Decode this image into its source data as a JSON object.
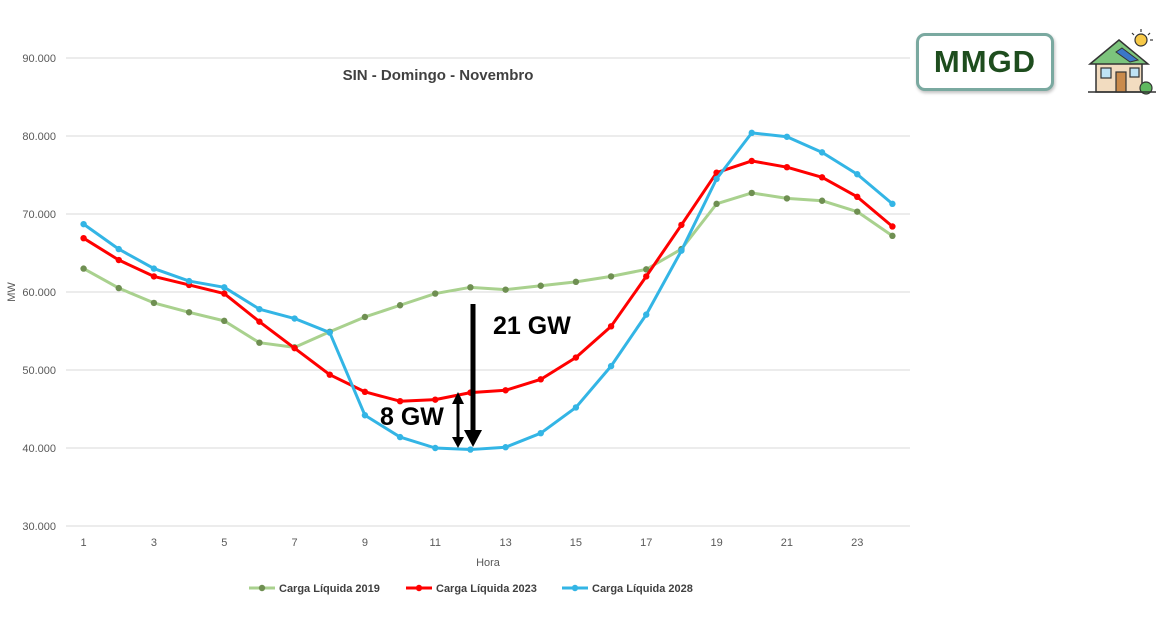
{
  "logo": {
    "text": "MMGD",
    "icon": "solar-house-icon"
  },
  "annotations": {
    "big_label": "21 GW",
    "small_label": "8 GW"
  },
  "chart_data": {
    "type": "line",
    "title": "SIN - Domingo - Novembro",
    "xlabel": "Hora",
    "ylabel": "MW",
    "ylim": [
      30000,
      90000
    ],
    "yticks": [
      {
        "value": 30000,
        "label": "30.000"
      },
      {
        "value": 40000,
        "label": "40.000"
      },
      {
        "value": 50000,
        "label": "50.000"
      },
      {
        "value": 60000,
        "label": "60.000"
      },
      {
        "value": 70000,
        "label": "70.000"
      },
      {
        "value": 80000,
        "label": "80.000"
      },
      {
        "value": 90000,
        "label": "90.000"
      }
    ],
    "xticks": [
      "1",
      "3",
      "5",
      "7",
      "9",
      "11",
      "13",
      "15",
      "17",
      "19",
      "21",
      "23"
    ],
    "x": [
      1,
      2,
      3,
      4,
      5,
      6,
      7,
      8,
      9,
      10,
      11,
      12,
      13,
      14,
      15,
      16,
      17,
      18,
      19,
      20,
      21,
      22,
      23,
      24
    ],
    "grid": "horizontal",
    "legend": "bottom",
    "series": [
      {
        "name": "Carga Líquida 2019",
        "color": "#a9d18e",
        "marker_color": "#6f8f52",
        "values": [
          63000,
          60500,
          58600,
          57400,
          56300,
          53500,
          52900,
          54900,
          56800,
          58300,
          59800,
          60600,
          60300,
          60800,
          61300,
          62000,
          62900,
          65500,
          71300,
          72700,
          72000,
          71700,
          70300,
          67200
        ]
      },
      {
        "name": "Carga Líquida 2023",
        "color": "#ff0000",
        "marker_color": "#ff0000",
        "values": [
          66900,
          64100,
          62000,
          60900,
          59800,
          56200,
          52800,
          49400,
          47200,
          46000,
          46200,
          47100,
          47400,
          48800,
          51600,
          55600,
          62000,
          68600,
          75300,
          76800,
          76000,
          74700,
          72200,
          68400
        ]
      },
      {
        "name": "Carga Líquida 2028",
        "color": "#33b5e5",
        "marker_color": "#33b5e5",
        "values": [
          68700,
          65500,
          63000,
          61400,
          60600,
          57800,
          56600,
          54800,
          44200,
          41400,
          40000,
          39800,
          40100,
          41900,
          45200,
          50500,
          57100,
          65300,
          74500,
          80400,
          79900,
          77900,
          75100,
          71300
        ]
      }
    ]
  }
}
